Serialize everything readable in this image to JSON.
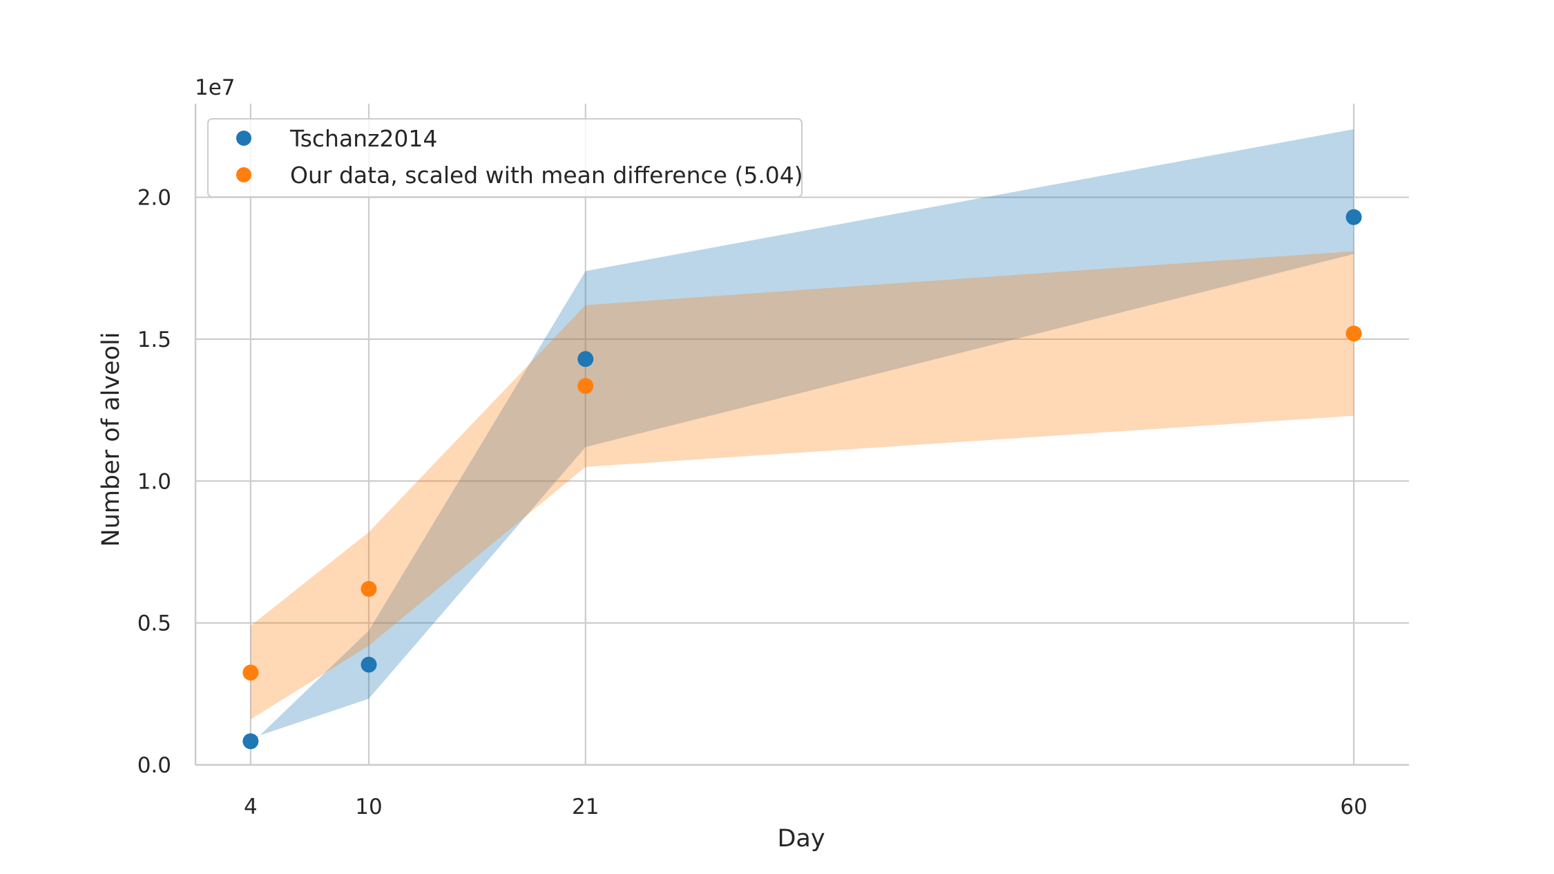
{
  "chart_data": {
    "type": "scatter",
    "x_label": "Day",
    "y_label": "Number of alveoli",
    "y_offset_label": "1e7",
    "x_ticks": [
      4,
      10,
      21,
      60
    ],
    "y_ticks": [
      0.0,
      0.5,
      1.0,
      1.5,
      2.0
    ],
    "y_tick_labels": [
      "0.0",
      "0.5",
      "1.0",
      "1.5",
      "2.0"
    ],
    "x_range": [
      1.2,
      62.8
    ],
    "y_range": [
      0.0,
      2.33
    ],
    "y_multiplier": 10000000,
    "grid": true,
    "legend_position": "upper-left",
    "series": [
      {
        "name": "Tschanz2014",
        "color": "#1f77b4",
        "x": [
          4,
          10,
          21,
          60
        ],
        "y": [
          0.083,
          0.353,
          1.43,
          1.93
        ],
        "band_lower": [
          0.093,
          0.233,
          1.12,
          1.8
        ],
        "band_upper": [
          0.073,
          0.473,
          1.74,
          2.24
        ]
      },
      {
        "name": "Our data, scaled with mean difference (5.04)",
        "color": "#ff7f0e",
        "x": [
          4,
          10,
          21,
          60
        ],
        "y": [
          0.325,
          0.62,
          1.335,
          1.52
        ],
        "band_lower": [
          0.16,
          0.42,
          1.05,
          1.23
        ],
        "band_upper": [
          0.49,
          0.82,
          1.62,
          1.81
        ]
      }
    ]
  }
}
